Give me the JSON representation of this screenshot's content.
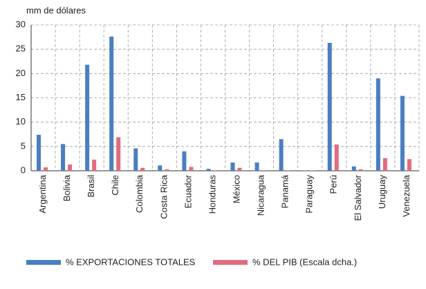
{
  "chart_data": {
    "type": "bar",
    "y_label": "mm de dólares",
    "categories": [
      "Argentina",
      "Bolivia",
      "Brasil",
      "Chile",
      "Colombia",
      "Costa Rica",
      "Ecuador",
      "Honduras",
      "México",
      "Nicaragua",
      "Panamá",
      "Paraguay",
      "Perú",
      "El Salvador",
      "Uruguay",
      "Venezuela"
    ],
    "series": [
      {
        "name": "% EXPORTACIONES TOTALES",
        "color": "#4a7ec2",
        "values": [
          7.4,
          5.5,
          21.8,
          27.6,
          4.6,
          1.1,
          4.0,
          0.4,
          1.7,
          1.7,
          6.5,
          0.05,
          26.3,
          0.9,
          19.0,
          15.4
        ]
      },
      {
        "name": "% DEL PIB (Escala dcha.)",
        "color": "#e26b80",
        "values": [
          0.7,
          1.3,
          2.3,
          6.9,
          0.6,
          0.3,
          0.8,
          0.1,
          0.6,
          0.1,
          0.1,
          0.05,
          5.4,
          0.3,
          2.6,
          2.4
        ]
      }
    ],
    "ylim": [
      0,
      30
    ],
    "yticks": [
      0,
      5,
      10,
      15,
      20,
      25,
      30
    ],
    "grid": true
  }
}
